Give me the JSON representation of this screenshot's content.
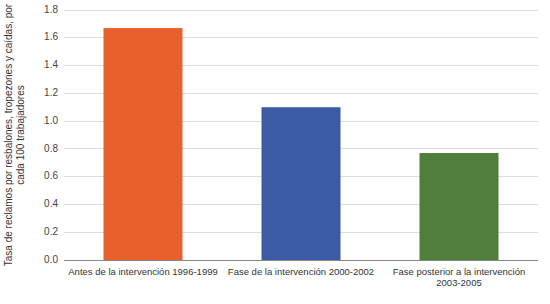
{
  "chart_data": {
    "type": "bar",
    "categories": [
      "Antes de la intervención 1996-1999",
      "Fase de la intervención 2000-2002",
      "Fase posterior a la intervención\n2003-2005"
    ],
    "values": [
      1.67,
      1.1,
      0.77
    ],
    "colors": [
      "#E8602C",
      "#3B5BA5",
      "#4E7E3A"
    ],
    "ylabel": "Tasa de reclamos por resbalones, tropezones y caídas, por\ncada 100 trabajadores",
    "ylim": [
      0,
      1.8
    ],
    "yticks": [
      {
        "value": 0,
        "label": "0.0"
      },
      0.2,
      0.4,
      0.6,
      0.8,
      {
        "value": 1,
        "label": "1.0"
      },
      1.2,
      1.4,
      1.6,
      1.8
    ],
    "grid": true
  }
}
